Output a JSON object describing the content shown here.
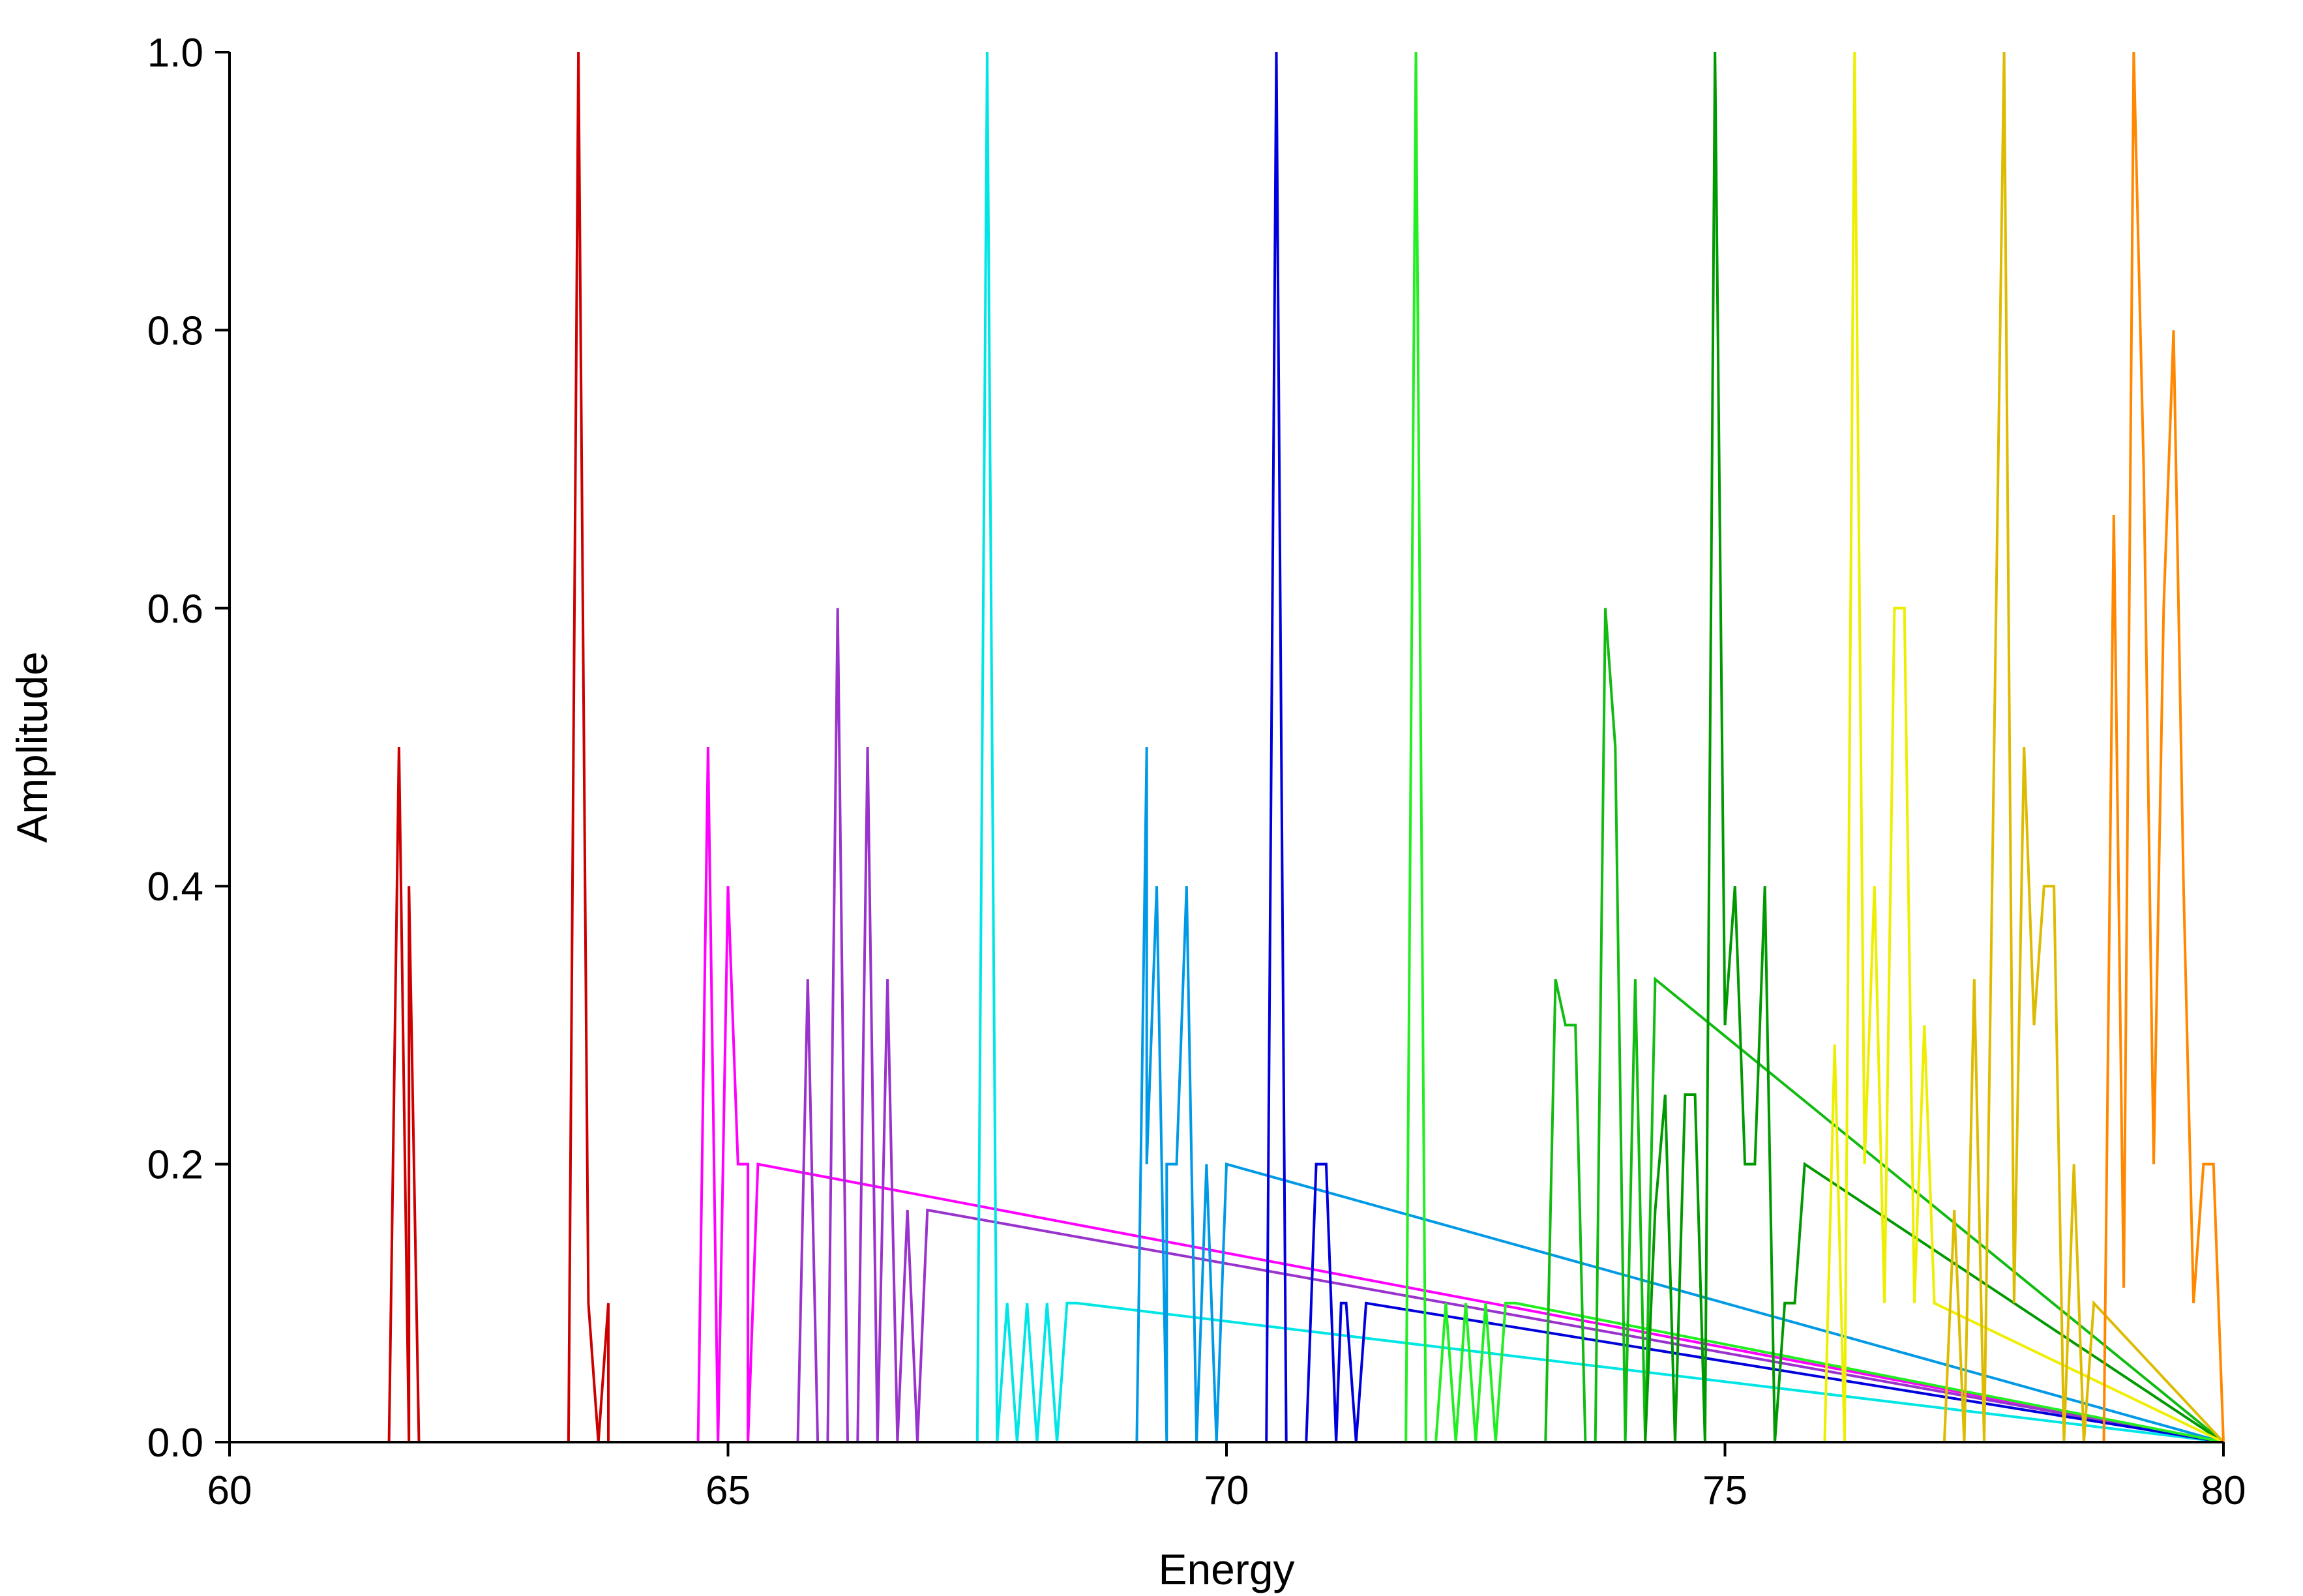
{
  "chart_data": {
    "type": "line",
    "title": "",
    "xlabel": "Energy",
    "ylabel": "Amplitude",
    "xlim": [
      60,
      80
    ],
    "ylim": [
      0,
      1.0
    ],
    "xticks": [
      60,
      65,
      70,
      75,
      80
    ],
    "yticks": [
      0.0,
      0.2,
      0.4,
      0.6,
      0.8,
      1.0
    ],
    "xtick_labels": [
      "60",
      "65",
      "70",
      "75",
      "80"
    ],
    "ytick_labels": [
      "0.0",
      "0.2",
      "0.4",
      "0.6",
      "0.8",
      "1.0"
    ],
    "grid": false,
    "legend": "none",
    "series": [
      {
        "color": "#cc0000",
        "x": [
          60,
          61.6,
          61.7,
          61.8,
          61.8,
          61.9,
          63.4,
          63.5,
          63.6,
          63.7,
          63.8,
          63.8,
          63.9,
          80
        ],
        "y": [
          0,
          0,
          0.5,
          0,
          0.4,
          0,
          0,
          1.0,
          0.1,
          0,
          0.1,
          0,
          0,
          0
        ]
      },
      {
        "color": "#ff00ff",
        "x": [
          60,
          64.7,
          64.8,
          64.9,
          65.0,
          65.1,
          65.2,
          65.2,
          65.3,
          80
        ],
        "y": [
          0,
          0,
          0.5,
          0,
          0.4,
          0.2,
          0.2,
          0,
          0.2,
          0
        ]
      },
      {
        "color": "#9933cc",
        "x": [
          60,
          65.7,
          65.8,
          65.9,
          66.0,
          66.1,
          66.2,
          66.3,
          66.4,
          66.5,
          66.6,
          66.7,
          66.8,
          66.8,
          66.9,
          67.0,
          80
        ],
        "y": [
          0,
          0,
          0.333,
          0,
          0,
          0.6,
          0,
          0,
          0.5,
          0,
          0.333,
          0,
          0.167,
          0.167,
          0,
          0.167,
          0
        ]
      },
      {
        "color": "#00e5e5",
        "x": [
          60,
          67.5,
          67.6,
          67.7,
          67.8,
          67.9,
          68.0,
          68.1,
          68.2,
          68.3,
          68.4,
          68.5,
          80
        ],
        "y": [
          0,
          0,
          1.0,
          0,
          0.1,
          0,
          0.1,
          0,
          0.1,
          0,
          0.1,
          0.1,
          0
        ]
      },
      {
        "color": "#0099e5",
        "x": [
          60,
          69.1,
          69.2,
          69.2,
          69.3,
          69.4,
          69.4,
          69.5,
          69.6,
          69.7,
          69.8,
          69.9,
          70.0,
          80
        ],
        "y": [
          0,
          0,
          0.5,
          0.2,
          0.4,
          0,
          0.2,
          0.2,
          0.4,
          0,
          0.2,
          0,
          0.2,
          0
        ]
      },
      {
        "color": "#0000dd",
        "x": [
          60,
          70.4,
          70.5,
          70.6,
          70.7,
          70.8,
          70.9,
          71.0,
          71.1,
          71.15,
          71.2,
          71.3,
          71.4,
          80
        ],
        "y": [
          0,
          0,
          1.0,
          0,
          0,
          0,
          0.2,
          0.2,
          0,
          0.1,
          0.1,
          0,
          0.1,
          0
        ]
      },
      {
        "color": "#22ee22",
        "x": [
          60,
          71.8,
          71.9,
          72.0,
          72.1,
          72.2,
          72.3,
          72.4,
          72.5,
          72.6,
          72.7,
          72.8,
          72.9,
          80
        ],
        "y": [
          0,
          0,
          1.0,
          0,
          0,
          0.1,
          0,
          0.1,
          0,
          0.1,
          0,
          0.1,
          0.1,
          0
        ]
      },
      {
        "color": "#11bb11",
        "x": [
          60,
          73.2,
          73.3,
          73.4,
          73.5,
          73.6,
          73.7,
          73.8,
          73.9,
          74.0,
          74.1,
          74.2,
          74.3,
          80
        ],
        "y": [
          0,
          0,
          0.333,
          0.3,
          0.3,
          0,
          0,
          0.6,
          0.5,
          0,
          0.333,
          0,
          0.333,
          0
        ]
      },
      {
        "color": "#009900",
        "x": [
          60,
          74.2,
          74.3,
          74.4,
          74.5,
          74.6,
          74.7,
          74.8,
          74.9,
          75.0,
          75.1,
          75.2,
          75.3,
          75.4,
          75.5,
          75.6,
          75.7,
          75.8,
          80
        ],
        "y": [
          0,
          0,
          0.167,
          0.25,
          0,
          0.25,
          0.25,
          0,
          1.0,
          0.3,
          0.4,
          0.2,
          0.2,
          0.4,
          0,
          0.1,
          0.1,
          0.2,
          0
        ]
      },
      {
        "color": "#eeee00",
        "x": [
          60,
          76.0,
          76.1,
          76.2,
          76.3,
          76.4,
          76.5,
          76.6,
          76.7,
          76.8,
          76.9,
          77.0,
          77.1,
          80
        ],
        "y": [
          0,
          0,
          0.286,
          0,
          1.0,
          0.2,
          0.4,
          0.1,
          0.6,
          0.6,
          0.1,
          0.3,
          0.1,
          0
        ]
      },
      {
        "color": "#ddbb00",
        "x": [
          60,
          77.2,
          77.3,
          77.4,
          77.5,
          77.6,
          77.7,
          77.8,
          77.9,
          78.0,
          78.1,
          78.2,
          78.3,
          78.4,
          78.5,
          78.6,
          78.7,
          80
        ],
        "y": [
          0,
          0,
          0.167,
          0,
          0.333,
          0,
          0.5,
          1.0,
          0.1,
          0.5,
          0.3,
          0.4,
          0.4,
          0,
          0.2,
          0,
          0.1,
          0
        ]
      },
      {
        "color": "#ff8800",
        "x": [
          60,
          78.8,
          78.9,
          79.0,
          79.1,
          79.2,
          79.3,
          79.4,
          79.5,
          79.6,
          79.7,
          79.8,
          79.9,
          80
        ],
        "y": [
          0,
          0,
          0.667,
          0.111,
          1.0,
          0.7,
          0.2,
          0.6,
          0.8,
          0.4,
          0.1,
          0.2,
          0.2,
          0
        ]
      }
    ]
  }
}
